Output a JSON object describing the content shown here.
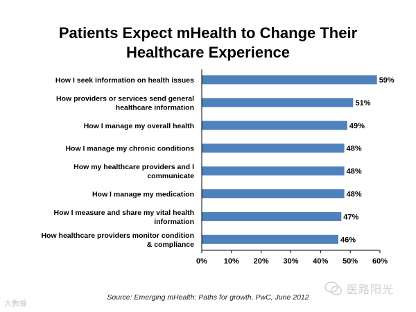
{
  "title_line1": "Patients Expect mHealth to Change Their",
  "title_line2": "Healthcare Experience",
  "source": "Source: Emerging mHealth: Paths for growth,  PwC, June 2012",
  "watermark_left": "大數據",
  "watermark_right": "医路阳光",
  "colors": {
    "bar": "#4f81bd",
    "axis": "#000000"
  },
  "chart_data": {
    "type": "bar",
    "orientation": "horizontal",
    "title": "Patients Expect mHealth to Change Their Healthcare Experience",
    "xlabel": "",
    "ylabel": "",
    "xlim": [
      0,
      60
    ],
    "ticks": [
      0,
      10,
      20,
      30,
      40,
      50,
      60
    ],
    "tick_labels": [
      "0%",
      "10%",
      "20%",
      "30%",
      "40%",
      "50%",
      "60%"
    ],
    "grid": false,
    "categories": [
      [
        "How I seek information on health issues"
      ],
      [
        "How providers or services send general",
        "healthcare information"
      ],
      [
        "How I manage my overall health"
      ],
      [
        "How I manage my chronic conditions"
      ],
      [
        "How my healthcare providers and I",
        "communicate"
      ],
      [
        "How I manage my medication"
      ],
      [
        "How I measure and share my vital health",
        "information"
      ],
      [
        "How healthcare providers monitor condition",
        "& compliance"
      ]
    ],
    "values": [
      59,
      51,
      49,
      48,
      48,
      48,
      47,
      46
    ],
    "value_labels": [
      "59%",
      "51%",
      "49%",
      "48%",
      "48%",
      "48%",
      "47%",
      "46%"
    ]
  }
}
